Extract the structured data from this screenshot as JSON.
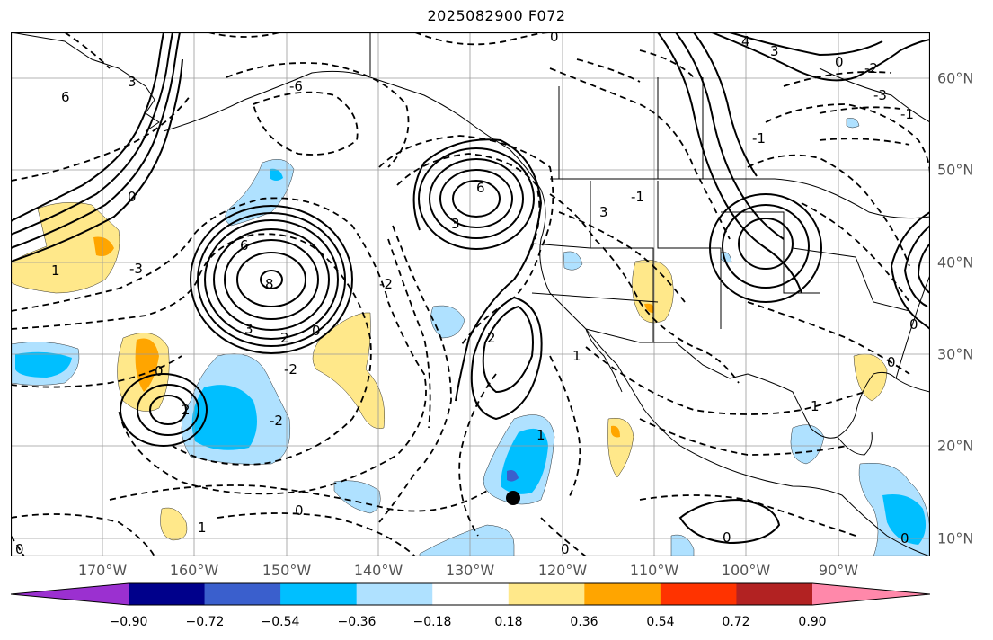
{
  "figure": {
    "title": "2025082900 F072"
  },
  "map": {
    "extent": {
      "lon_min": -180,
      "lon_max": -80,
      "lat_min": 8,
      "lat_max": 65
    },
    "lon_labels": [
      "170°W",
      "160°W",
      "150°W",
      "140°W",
      "130°W",
      "120°W",
      "110°W",
      "100°W",
      "90°W"
    ],
    "lat_labels": [
      "60°N",
      "50°N",
      "40°N",
      "30°N",
      "20°N",
      "10°N"
    ],
    "gridlines": true,
    "marker": {
      "label": "storm-center",
      "lon": -126,
      "lat": 14.5
    }
  },
  "contours": {
    "positive_style": "solid",
    "negative_style": "dashed",
    "labels": [
      "6",
      "3",
      "1",
      "0",
      "-1",
      "-2",
      "-3",
      "-6",
      "2",
      "4",
      "8"
    ]
  },
  "colorbar": {
    "orientation": "horizontal",
    "extend": "both",
    "ticks": [
      "−0.90",
      "−0.72",
      "−0.54",
      "−0.36",
      "−0.18",
      "0.18",
      "0.36",
      "0.54",
      "0.72",
      "0.90"
    ],
    "colors": [
      "#9b30d0",
      "#00008b",
      "#3a5fcd",
      "#00bfff",
      "#afe1ff",
      "#ffffff",
      "#ffe88a",
      "#ffa500",
      "#ff3300",
      "#b22222",
      "#ff88aa"
    ]
  },
  "shading": {
    "light_blue": "#afe1ff",
    "blue": "#00bfff",
    "mid_blue": "#3a5fcd",
    "yellow": "#ffe88a",
    "orange": "#ffa500"
  }
}
